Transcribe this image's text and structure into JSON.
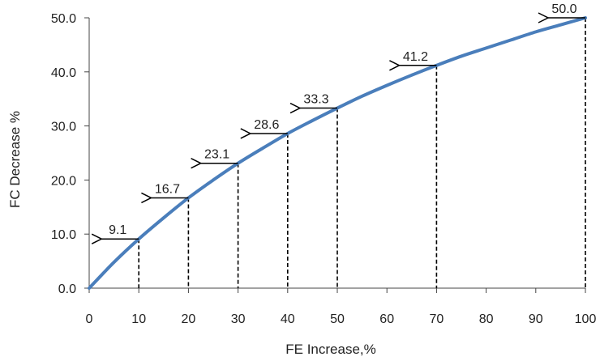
{
  "chart_data": {
    "type": "line",
    "title": "",
    "xlabel": "FE Increase,%",
    "ylabel": "FC Decrease %",
    "xlim": [
      0,
      100
    ],
    "ylim": [
      0,
      50
    ],
    "x_ticks": [
      "0",
      "10",
      "20",
      "30",
      "40",
      "50",
      "60",
      "70",
      "80",
      "90",
      "100"
    ],
    "y_ticks": [
      "0.0",
      "10.0",
      "20.0",
      "30.0",
      "40.0",
      "50.0"
    ],
    "grid": false,
    "legend": "none",
    "series": [
      {
        "color": "#4a7ebb",
        "x": [
          0,
          5,
          10,
          15,
          20,
          25,
          30,
          35,
          40,
          45,
          50,
          55,
          60,
          65,
          70,
          75,
          80,
          85,
          90,
          95,
          100
        ],
        "y": [
          0.0,
          4.8,
          9.1,
          13.0,
          16.7,
          20.0,
          23.1,
          25.9,
          28.6,
          31.0,
          33.3,
          35.5,
          37.5,
          39.4,
          41.2,
          42.9,
          44.4,
          45.9,
          47.4,
          48.7,
          50.0
        ]
      }
    ],
    "annotations": [
      {
        "x": 10,
        "y": 9.1,
        "label": "9.1"
      },
      {
        "x": 20,
        "y": 16.7,
        "label": "16.7"
      },
      {
        "x": 30,
        "y": 23.1,
        "label": "23.1"
      },
      {
        "x": 40,
        "y": 28.6,
        "label": "28.6"
      },
      {
        "x": 50,
        "y": 33.3,
        "label": "33.3"
      },
      {
        "x": 70,
        "y": 41.2,
        "label": "41.2"
      },
      {
        "x": 100,
        "y": 50.0,
        "label": "50.0"
      }
    ]
  }
}
